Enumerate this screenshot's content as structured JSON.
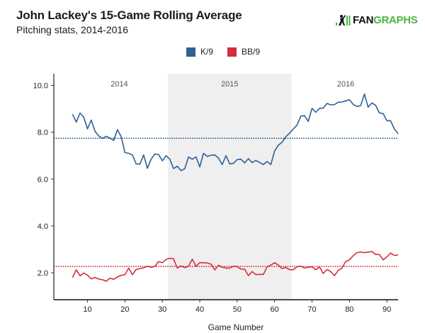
{
  "header": {
    "title": "John Lackey's 15-Game Rolling Average",
    "subtitle": "Pitching stats, 2014-2016",
    "logo_text_black": "FAN",
    "logo_text_green": "GRAPHS",
    "logo_icon": "batter-icon"
  },
  "colors": {
    "k9": "#2f6096",
    "bb9": "#d42d3c",
    "shade": "#efefef",
    "brand_green": "#4bb543"
  },
  "chart_data": {
    "type": "line",
    "title": "John Lackey's 15-Game Rolling Average",
    "subtitle": "Pitching stats, 2014-2016",
    "xlabel": "Game Number",
    "ylabel": "",
    "xlim": [
      1,
      93
    ],
    "ylim": [
      0.85,
      10.5
    ],
    "x_ticks": [
      10,
      20,
      30,
      40,
      50,
      60,
      70,
      80,
      90
    ],
    "y_ticks": [
      2.0,
      4.0,
      6.0,
      8.0,
      10.0
    ],
    "y_tick_labels": [
      "2.0",
      "4.0",
      "6.0",
      "8.0",
      "10.0"
    ],
    "grid": false,
    "legend": {
      "position": "top-center",
      "entries": [
        "K/9",
        "BB/9"
      ]
    },
    "shaded_regions": [
      {
        "label": "2015",
        "x_start": 31.5,
        "x_end": 64.5
      }
    ],
    "season_labels": [
      {
        "label": "2014",
        "x": 18.5
      },
      {
        "label": "2015",
        "x": 48
      },
      {
        "label": "2016",
        "x": 79
      }
    ],
    "reference_lines": [
      {
        "series": "K/9",
        "value": 7.74,
        "style": "dotted"
      },
      {
        "series": "BB/9",
        "value": 2.27,
        "style": "dotted"
      }
    ],
    "x": [
      6,
      7,
      8,
      9,
      10,
      11,
      12,
      13,
      14,
      15,
      16,
      17,
      18,
      19,
      20,
      21,
      22,
      23,
      24,
      25,
      26,
      27,
      28,
      29,
      30,
      31,
      32,
      33,
      34,
      35,
      36,
      37,
      38,
      39,
      40,
      41,
      42,
      43,
      44,
      45,
      46,
      47,
      48,
      49,
      50,
      51,
      52,
      53,
      54,
      55,
      56,
      57,
      58,
      59,
      60,
      61,
      62,
      63,
      64,
      65,
      66,
      67,
      68,
      69,
      70,
      71,
      72,
      73,
      74,
      75,
      76,
      77,
      78,
      79,
      80,
      81,
      82,
      83,
      84,
      85,
      86,
      87,
      88,
      89,
      90,
      91,
      92,
      93
    ],
    "series": [
      {
        "name": "K/9",
        "values": [
          8.77,
          8.43,
          8.82,
          8.64,
          8.14,
          8.52,
          8.04,
          7.84,
          7.74,
          7.83,
          7.75,
          7.65,
          8.11,
          7.81,
          7.13,
          7.1,
          7.03,
          6.65,
          6.64,
          7.03,
          6.46,
          6.85,
          7.07,
          7.05,
          6.78,
          7.0,
          6.85,
          6.45,
          6.55,
          6.36,
          6.45,
          6.95,
          6.85,
          6.95,
          6.52,
          7.1,
          6.97,
          7.02,
          7.03,
          6.9,
          6.62,
          7.0,
          6.65,
          6.67,
          6.83,
          6.85,
          6.69,
          6.87,
          6.7,
          6.8,
          6.71,
          6.62,
          6.75,
          6.62,
          7.2,
          7.45,
          7.57,
          7.81,
          7.96,
          8.14,
          8.31,
          8.69,
          8.71,
          8.46,
          9.02,
          8.85,
          9.02,
          9.03,
          9.23,
          9.17,
          9.18,
          9.28,
          9.29,
          9.34,
          9.39,
          9.19,
          9.1,
          9.14,
          9.63,
          9.07,
          9.25,
          9.15,
          8.82,
          8.8,
          8.49,
          8.49,
          8.14,
          7.94
        ]
      },
      {
        "name": "BB/9",
        "values": [
          1.8,
          2.13,
          1.87,
          1.99,
          1.9,
          1.74,
          1.8,
          1.73,
          1.7,
          1.64,
          1.77,
          1.72,
          1.82,
          1.89,
          1.92,
          2.2,
          1.92,
          2.14,
          2.18,
          2.21,
          2.28,
          2.23,
          2.27,
          2.48,
          2.43,
          2.57,
          2.62,
          2.6,
          2.2,
          2.29,
          2.22,
          2.28,
          2.58,
          2.28,
          2.43,
          2.43,
          2.42,
          2.37,
          2.12,
          2.32,
          2.24,
          2.2,
          2.2,
          2.28,
          2.26,
          2.16,
          2.15,
          1.88,
          2.05,
          1.92,
          1.93,
          1.93,
          2.25,
          2.33,
          2.43,
          2.33,
          2.18,
          2.23,
          2.13,
          2.13,
          2.26,
          2.28,
          2.2,
          2.24,
          2.25,
          2.13,
          2.25,
          1.97,
          2.14,
          2.05,
          1.88,
          2.1,
          2.2,
          2.48,
          2.55,
          2.73,
          2.86,
          2.89,
          2.86,
          2.88,
          2.91,
          2.78,
          2.78,
          2.55,
          2.68,
          2.84,
          2.74,
          2.76
        ]
      }
    ]
  }
}
